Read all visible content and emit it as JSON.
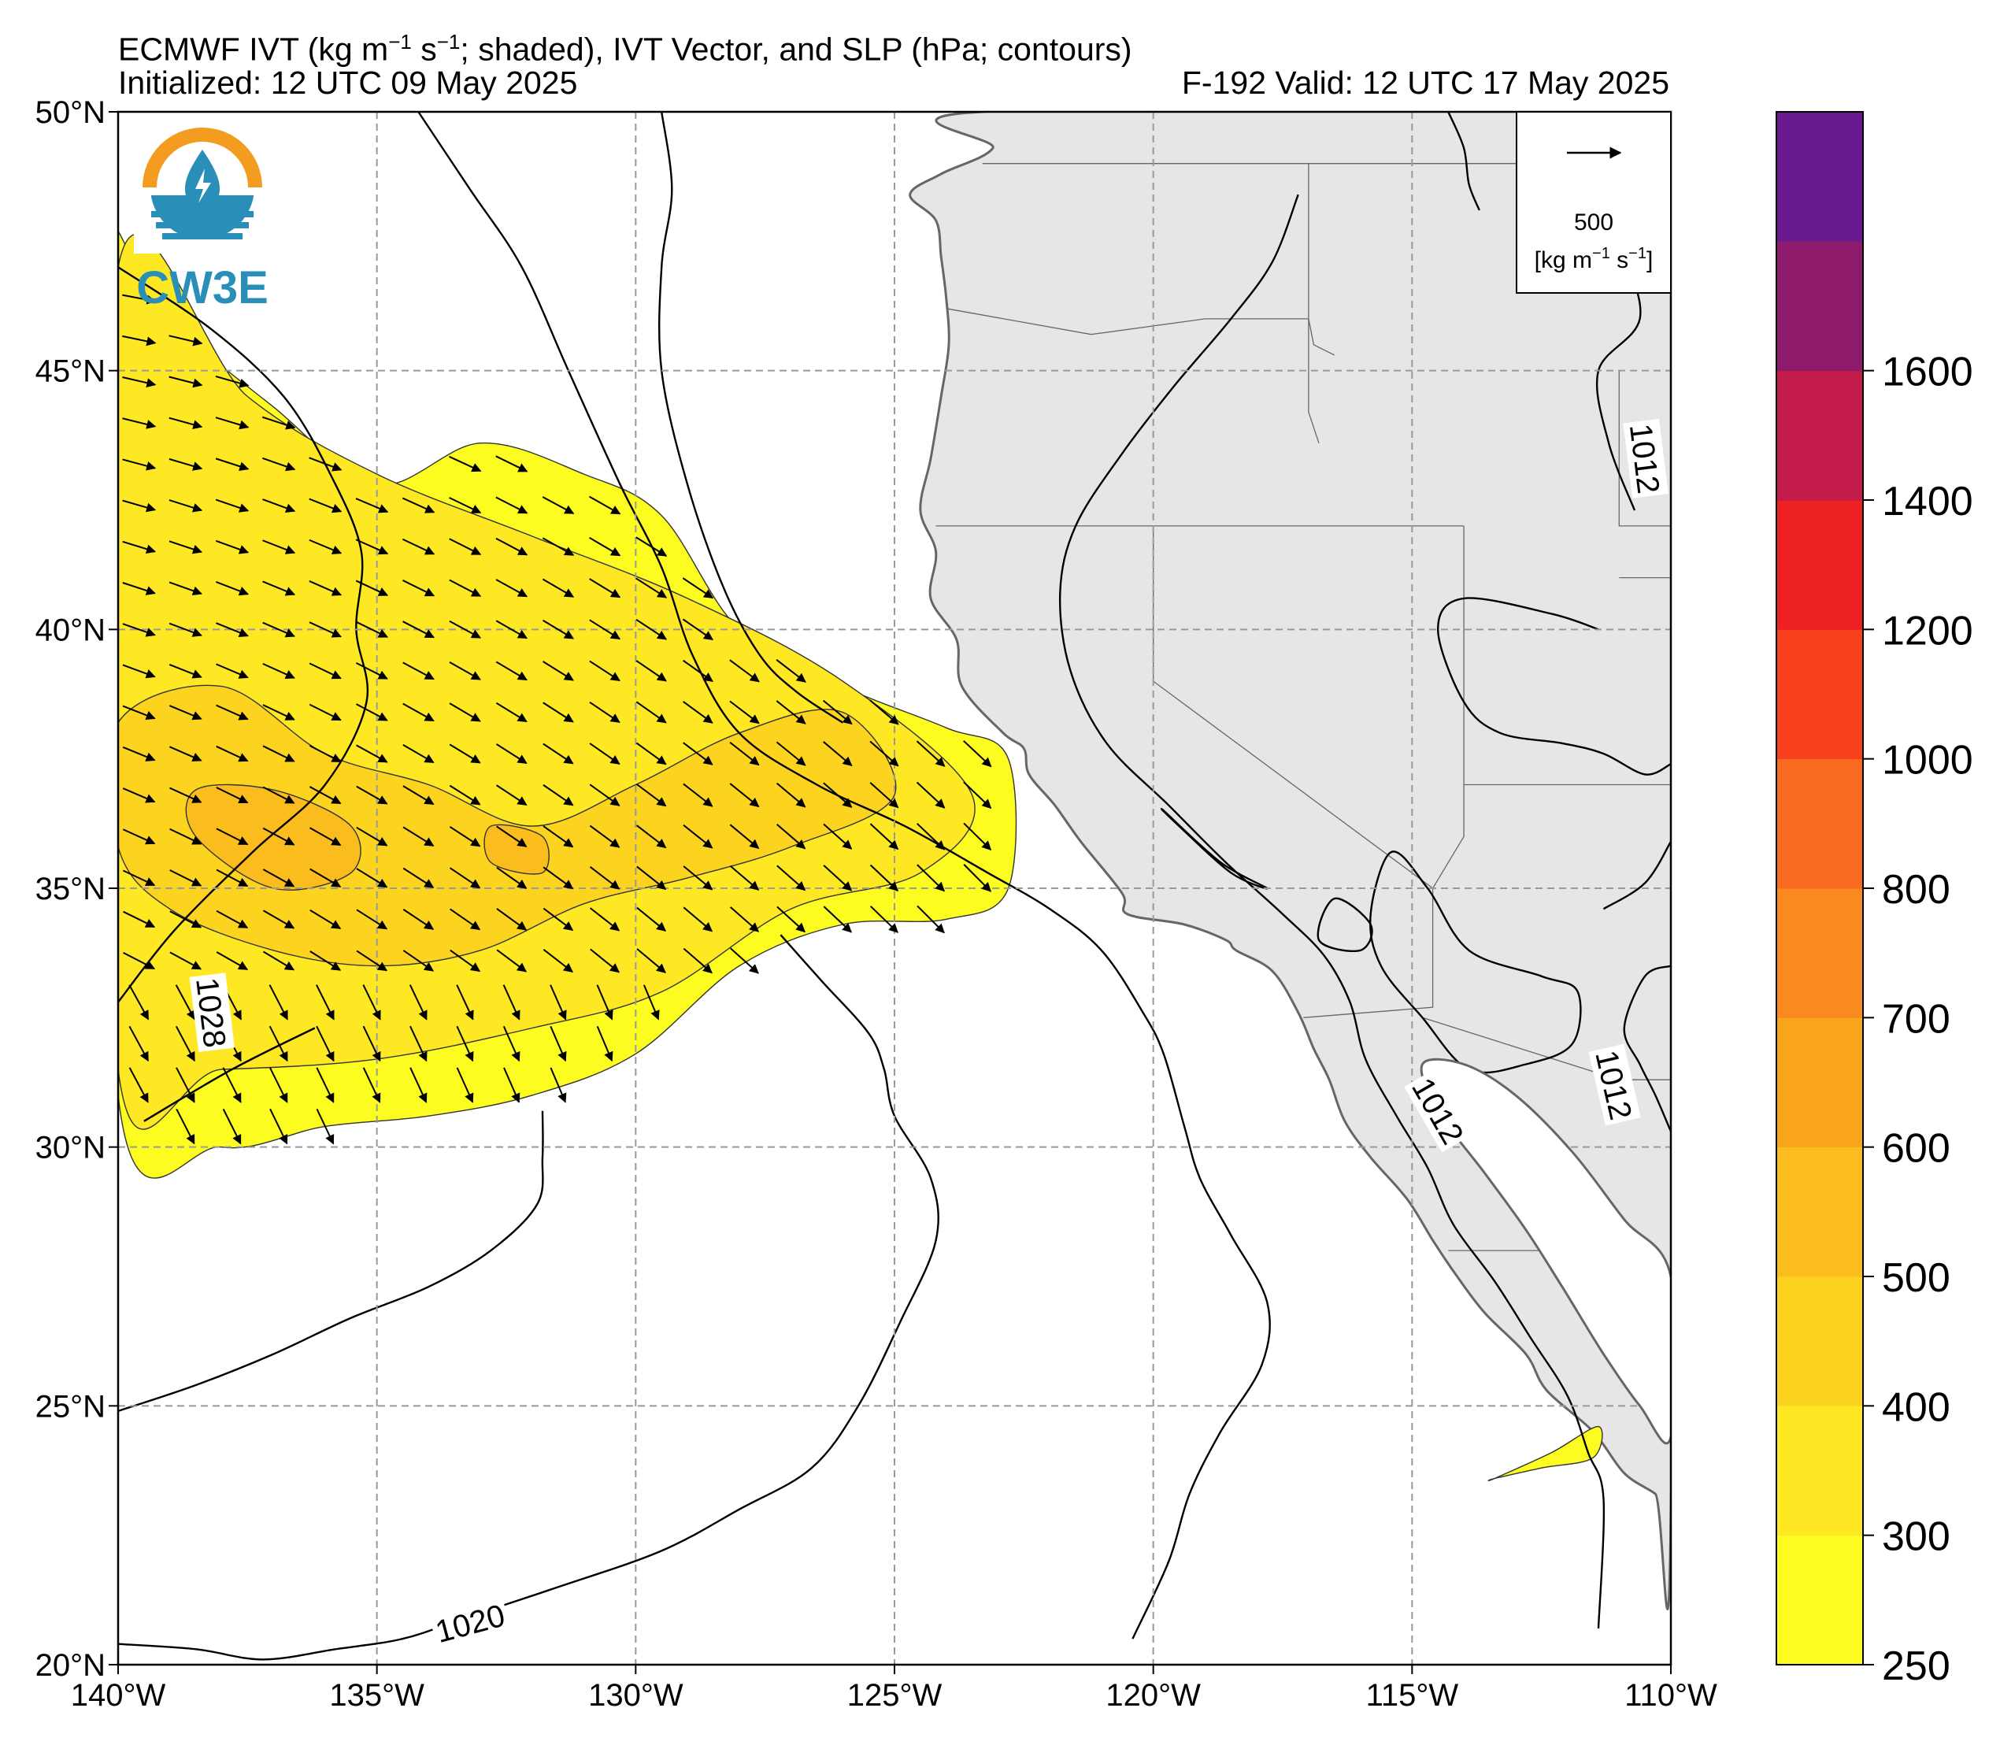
{
  "header": {
    "title_prefix": "ECMWF IVT (kg m",
    "title_middle1": " s",
    "title_suffix": "; shaded), IVT Vector, and SLP (hPa; contours)",
    "exponent": "−1",
    "initialized": "Initialized: 12 UTC 09 May 2025",
    "valid": "F-192  Valid: 12 UTC 17 May 2025"
  },
  "logo": {
    "text": "CW3E",
    "icon": "water-drop-sun-icon"
  },
  "colors": {
    "land": "#e6e6e6",
    "ocean": "#ffffff",
    "coast": "#666666",
    "grid": "#999999"
  },
  "legend": {
    "vector_value": "500",
    "vector_units_a": "[kg m",
    "vector_units_b": " s",
    "vector_units_c": "]",
    "exponent": "−1"
  },
  "chart_data": {
    "type": "heatmap",
    "title": "ECMWF IVT (kg m−1 s−1; shaded), IVT Vector, and SLP (hPa; contours)",
    "projection": "lat-lon",
    "xlim": [
      -140,
      -110
    ],
    "ylim": [
      20,
      50
    ],
    "x_ticks": [
      -140,
      -135,
      -130,
      -125,
      -120,
      -115,
      -110
    ],
    "x_tick_labels": [
      "140°W",
      "135°W",
      "130°W",
      "125°W",
      "120°W",
      "115°W",
      "110°W"
    ],
    "y_ticks": [
      20,
      25,
      30,
      35,
      40,
      45,
      50
    ],
    "y_tick_labels": [
      "20°N",
      "25°N",
      "30°N",
      "35°N",
      "40°N",
      "45°N",
      "50°N"
    ],
    "grid": true,
    "colorbar": {
      "levels": [
        250,
        300,
        400,
        500,
        600,
        700,
        800,
        1000,
        1200,
        1400,
        1600
      ],
      "tick_labels": [
        "250",
        "300",
        "400",
        "500",
        "600",
        "700",
        "800",
        "1000",
        "1200",
        "1400",
        "1600"
      ],
      "colors": [
        "#fcfc21",
        "#fde823",
        "#fcd41f",
        "#fbbd1d",
        "#f9a51a",
        "#f98a1f",
        "#f86b21",
        "#f8401c",
        "#ed2024",
        "#c41c4a",
        "#8d1a6b",
        "#6a1a90"
      ]
    },
    "ivt_regions": [
      {
        "level": 250,
        "lon": [
          -140,
          -139,
          -137,
          -135,
          -133,
          -131,
          -129.5,
          -128,
          -126,
          -124,
          -122.8,
          -122.8,
          -124,
          -126,
          -128,
          -130,
          -132,
          -134,
          -136,
          -138,
          -140,
          -140
        ],
        "lat": [
          47.7,
          46,
          44.3,
          42.8,
          43.6,
          43,
          42.2,
          40,
          38.9,
          38.1,
          37.5,
          35,
          34.4,
          34.3,
          33.5,
          31.8,
          31,
          30.6,
          30.4,
          30,
          31,
          47.7
        ]
      },
      {
        "level": 300,
        "lon": [
          -140,
          -137.5,
          -135,
          -132,
          -129,
          -126,
          -123.5,
          -124.5,
          -127,
          -129.5,
          -132,
          -135,
          -138,
          -140
        ],
        "lat": [
          47,
          44.5,
          43,
          41.8,
          40.6,
          39,
          36.8,
          35.3,
          34.6,
          33,
          32.3,
          31.7,
          31.5,
          31.5
        ]
      },
      {
        "level": 400,
        "lon": [
          -140,
          -138,
          -136,
          -134,
          -132,
          -130,
          -128,
          -126,
          -125,
          -127,
          -129,
          -131,
          -133,
          -135,
          -137,
          -139,
          -140
        ],
        "lat": [
          38.2,
          38.9,
          37.6,
          37,
          36.2,
          37,
          38,
          38.4,
          36.8,
          35.8,
          35.2,
          34.7,
          33.8,
          33.5,
          33.8,
          34.6,
          35.8
        ]
      },
      {
        "level": 500,
        "lon": [
          -138.5,
          -137,
          -135.5,
          -135.5,
          -137,
          -138.5
        ],
        "lat": [
          36.9,
          36.9,
          36.2,
          35.3,
          35,
          36
        ]
      },
      {
        "level": 500,
        "lon": [
          -132.8,
          -131.8,
          -131.8,
          -132.8
        ],
        "lat": [
          36.2,
          36,
          35.3,
          35.5
        ]
      },
      {
        "level": 250,
        "lon": [
          -113.4,
          -112.3,
          -111.4,
          -111.5,
          -112.5,
          -113.4
        ],
        "lat": [
          23.6,
          24.1,
          24.6,
          24.0,
          23.8,
          23.6
        ]
      }
    ],
    "slp_contours": [
      {
        "value": 1028,
        "label": "1028",
        "label_lon": -138.2,
        "label_lat": 32.6,
        "label_angle": 83
      },
      {
        "value": 1020,
        "label": "1020",
        "label_lon": -133.2,
        "label_lat": 20.8,
        "label_angle": -15
      },
      {
        "value": 1012,
        "label": "1012",
        "label_lon": -110.5,
        "label_lat": 43.3,
        "label_angle": 83
      },
      {
        "value": 1012,
        "label": "1012",
        "label_lon": -114.5,
        "label_lat": 30.7,
        "label_angle": 60
      },
      {
        "value": 1012,
        "label": "1012",
        "label_lon": -111.1,
        "label_lat": 31.2,
        "label_angle": 77
      }
    ],
    "ivt_vectors": {
      "reference_magnitude": 500,
      "reference_unit": "kg m−1 s−1",
      "general_direction": "southeastward to southward"
    }
  }
}
